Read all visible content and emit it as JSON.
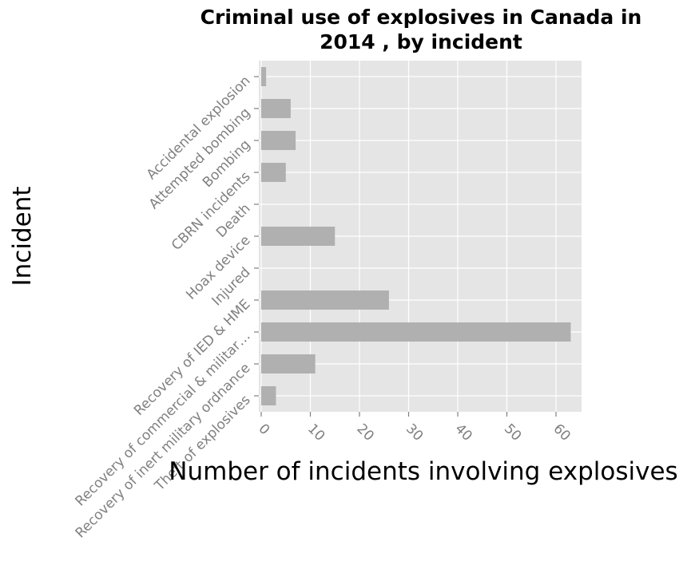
{
  "chart_data": {
    "type": "bar",
    "orientation": "horizontal",
    "title": "Criminal use of explosives in Canada in 2014 , by incident",
    "title_lines": [
      "Criminal use of explosives in Canada in",
      "2014 , by incident"
    ],
    "xlabel": "Number of incidents involving explosives",
    "ylabel": "Incident",
    "xlim": [
      0,
      65
    ],
    "x_ticks": [
      0,
      10,
      20,
      30,
      40,
      50,
      60
    ],
    "grid": true,
    "categories": [
      "Accidental explosion",
      "Attempted bombing",
      "Bombing",
      "CBRN incidents",
      "Death",
      "Hoax device",
      "Injured",
      "Recovery of IED & HME",
      "Recovery of commercial & militar…",
      "Recovery of inert military ordnance",
      "Theft of explosives"
    ],
    "values": [
      1,
      6,
      7,
      5,
      0,
      15,
      0,
      26,
      63,
      11,
      3
    ],
    "colors": {
      "bar": "#b0b0b0",
      "plot_background": "#e5e5e5",
      "gridline": "#ffffff",
      "tick_text": "#808080"
    }
  }
}
